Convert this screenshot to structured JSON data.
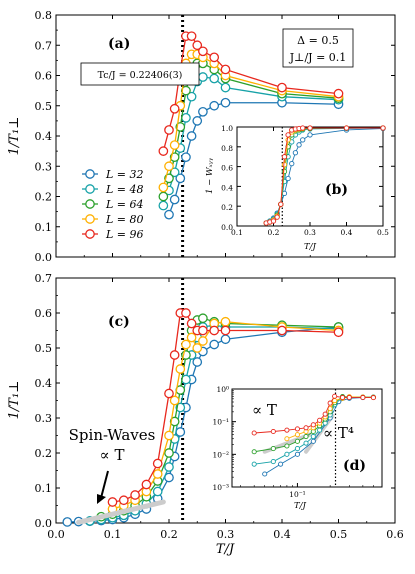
{
  "chart_data": [
    {
      "panel": "(a)",
      "type": "line",
      "ylabel": "1/T₁⊥",
      "ylim": [
        0,
        0.8
      ],
      "xlim": [
        0,
        0.6
      ],
      "yticks": [
        "0.0",
        "0.1",
        "0.2",
        "0.3",
        "0.4",
        "0.5",
        "0.6",
        "0.7",
        "0.8"
      ],
      "vline_x": 0.22406,
      "annotations": {
        "tc": "Tc/J = 0.22406(3)",
        "delta": "Δ = 0.5",
        "jperp": "J⊥/J = 0.1"
      },
      "legend": [
        "L = 32",
        "L = 48",
        "L = 64",
        "L = 80",
        "L = 96"
      ],
      "series": [
        {
          "name": "L = 32",
          "color": "#1f77b4",
          "x": [
            0.2,
            0.21,
            0.22,
            0.23,
            0.24,
            0.25,
            0.26,
            0.28,
            0.3,
            0.4,
            0.5
          ],
          "y": [
            0.14,
            0.19,
            0.26,
            0.33,
            0.4,
            0.45,
            0.48,
            0.5,
            0.51,
            0.51,
            0.505
          ]
        },
        {
          "name": "L = 48",
          "color": "#17a2a8",
          "x": [
            0.19,
            0.2,
            0.21,
            0.22,
            0.23,
            0.24,
            0.25,
            0.26,
            0.28,
            0.3,
            0.4,
            0.5
          ],
          "y": [
            0.17,
            0.22,
            0.28,
            0.36,
            0.46,
            0.53,
            0.58,
            0.595,
            0.59,
            0.56,
            0.53,
            0.52
          ]
        },
        {
          "name": "L = 64",
          "color": "#2ca02c",
          "x": [
            0.19,
            0.2,
            0.21,
            0.22,
            0.23,
            0.24,
            0.25,
            0.26,
            0.28,
            0.3,
            0.4,
            0.5
          ],
          "y": [
            0.2,
            0.26,
            0.33,
            0.43,
            0.55,
            0.62,
            0.64,
            0.64,
            0.62,
            0.59,
            0.54,
            0.525
          ]
        },
        {
          "name": "L = 80",
          "color": "#ffb000",
          "x": [
            0.19,
            0.2,
            0.21,
            0.22,
            0.23,
            0.24,
            0.25,
            0.26,
            0.28,
            0.3,
            0.4,
            0.5
          ],
          "y": [
            0.23,
            0.3,
            0.37,
            0.5,
            0.64,
            0.67,
            0.67,
            0.66,
            0.64,
            0.6,
            0.55,
            0.53
          ]
        },
        {
          "name": "L = 96",
          "color": "#e8281e",
          "x": [
            0.19,
            0.2,
            0.21,
            0.22,
            0.23,
            0.24,
            0.25,
            0.26,
            0.28,
            0.3,
            0.4,
            0.5
          ],
          "y": [
            0.35,
            0.42,
            0.49,
            0.62,
            0.73,
            0.73,
            0.7,
            0.68,
            0.66,
            0.62,
            0.56,
            0.54
          ]
        }
      ]
    },
    {
      "panel": "(b)",
      "type": "line",
      "ylabel": "1 − Wₓᵧᵧ",
      "xlabel": "T/J",
      "xlim": [
        0.1,
        0.5
      ],
      "ylim": [
        0,
        1.0
      ],
      "xticks": [
        "0.1",
        "0.2",
        "0.3",
        "0.4",
        "0.5"
      ],
      "yticks": [
        "0.0",
        "0.2",
        "0.4",
        "0.6",
        "0.8",
        "1.0"
      ],
      "vline_x": 0.22406,
      "series": [
        {
          "name": "L = 32",
          "color": "#1f77b4",
          "x": [
            0.18,
            0.19,
            0.2,
            0.21,
            0.22,
            0.23,
            0.24,
            0.25,
            0.26,
            0.27,
            0.28,
            0.3,
            0.4,
            0.5
          ],
          "y": [
            0.03,
            0.05,
            0.08,
            0.13,
            0.22,
            0.33,
            0.48,
            0.63,
            0.74,
            0.82,
            0.87,
            0.92,
            0.97,
            0.985
          ]
        },
        {
          "name": "L = 48",
          "color": "#17a2a8",
          "x": [
            0.18,
            0.19,
            0.2,
            0.21,
            0.22,
            0.23,
            0.24,
            0.25,
            0.26,
            0.27,
            0.28,
            0.3,
            0.4,
            0.5
          ],
          "y": [
            0.03,
            0.05,
            0.07,
            0.12,
            0.22,
            0.45,
            0.7,
            0.85,
            0.92,
            0.95,
            0.97,
            0.98,
            0.985,
            0.99
          ]
        },
        {
          "name": "L = 64",
          "color": "#2ca02c",
          "x": [
            0.18,
            0.19,
            0.2,
            0.21,
            0.22,
            0.23,
            0.24,
            0.25,
            0.26,
            0.27,
            0.28,
            0.3,
            0.4,
            0.5
          ],
          "y": [
            0.03,
            0.04,
            0.06,
            0.11,
            0.22,
            0.55,
            0.8,
            0.92,
            0.96,
            0.97,
            0.98,
            0.985,
            0.99,
            0.99
          ]
        },
        {
          "name": "L = 80",
          "color": "#ffb000",
          "x": [
            0.18,
            0.19,
            0.2,
            0.21,
            0.22,
            0.23,
            0.24,
            0.25,
            0.26,
            0.27,
            0.28,
            0.3,
            0.4,
            0.5
          ],
          "y": [
            0.03,
            0.04,
            0.06,
            0.1,
            0.22,
            0.62,
            0.87,
            0.95,
            0.97,
            0.98,
            0.985,
            0.99,
            0.99,
            0.99
          ]
        },
        {
          "name": "L = 96",
          "color": "#e8281e",
          "x": [
            0.18,
            0.19,
            0.2,
            0.21,
            0.22,
            0.23,
            0.24,
            0.25,
            0.26,
            0.27,
            0.28,
            0.3,
            0.4,
            0.5
          ],
          "y": [
            0.03,
            0.04,
            0.05,
            0.09,
            0.22,
            0.7,
            0.92,
            0.97,
            0.98,
            0.985,
            0.99,
            0.99,
            0.99,
            0.99
          ]
        }
      ]
    },
    {
      "panel": "(c)",
      "type": "line",
      "xlabel": "T/J",
      "ylabel": "1/T₁⊥",
      "xlim": [
        0,
        0.6
      ],
      "ylim": [
        0,
        0.7
      ],
      "xticks": [
        "0.0",
        "0.1",
        "0.2",
        "0.3",
        "0.4",
        "0.5",
        "0.6"
      ],
      "yticks": [
        "0.0",
        "0.1",
        "0.2",
        "0.3",
        "0.4",
        "0.5",
        "0.6",
        "0.7"
      ],
      "vline_x": 0.22406,
      "annotations": {
        "sw1": "Spin-Waves",
        "sw2": "∝ T"
      },
      "series": [
        {
          "name": "L = 32",
          "color": "#1f77b4",
          "x": [
            0.02,
            0.04,
            0.06,
            0.08,
            0.1,
            0.12,
            0.14,
            0.16,
            0.18,
            0.2,
            0.21,
            0.22,
            0.23,
            0.24,
            0.25,
            0.26,
            0.28,
            0.3,
            0.4,
            0.5
          ],
          "y": [
            0.003,
            0.004,
            0.005,
            0.007,
            0.01,
            0.015,
            0.025,
            0.04,
            0.07,
            0.13,
            0.19,
            0.26,
            0.33,
            0.41,
            0.46,
            0.49,
            0.51,
            0.525,
            0.545,
            0.56
          ]
        },
        {
          "name": "L = 48",
          "color": "#17a2a8",
          "x": [
            0.06,
            0.08,
            0.1,
            0.12,
            0.14,
            0.16,
            0.18,
            0.2,
            0.21,
            0.22,
            0.23,
            0.24,
            0.25,
            0.26,
            0.28,
            0.3,
            0.4,
            0.5
          ],
          "y": [
            0.006,
            0.01,
            0.015,
            0.022,
            0.035,
            0.055,
            0.09,
            0.16,
            0.24,
            0.33,
            0.41,
            0.48,
            0.53,
            0.56,
            0.565,
            0.56,
            0.56,
            0.555
          ]
        },
        {
          "name": "L = 64",
          "color": "#2ca02c",
          "x": [
            0.08,
            0.1,
            0.12,
            0.14,
            0.16,
            0.18,
            0.2,
            0.21,
            0.22,
            0.23,
            0.24,
            0.25,
            0.26,
            0.28,
            0.3,
            0.4,
            0.5
          ],
          "y": [
            0.018,
            0.025,
            0.035,
            0.05,
            0.075,
            0.12,
            0.2,
            0.29,
            0.38,
            0.48,
            0.55,
            0.58,
            0.585,
            0.575,
            0.57,
            0.565,
            0.56
          ]
        },
        {
          "name": "L = 80",
          "color": "#ffb000",
          "x": [
            0.1,
            0.12,
            0.14,
            0.16,
            0.18,
            0.2,
            0.21,
            0.22,
            0.23,
            0.24,
            0.25,
            0.26,
            0.28,
            0.3,
            0.4,
            0.5
          ],
          "y": [
            0.04,
            0.05,
            0.065,
            0.09,
            0.14,
            0.25,
            0.35,
            0.44,
            0.51,
            0.53,
            0.5,
            0.52,
            0.57,
            0.575,
            0.56,
            0.55
          ]
        },
        {
          "name": "L = 96",
          "color": "#e8281e",
          "x": [
            0.1,
            0.12,
            0.14,
            0.16,
            0.18,
            0.2,
            0.21,
            0.22,
            0.23,
            0.24,
            0.25,
            0.26,
            0.28,
            0.3,
            0.4,
            0.5
          ],
          "y": [
            0.06,
            0.065,
            0.08,
            0.11,
            0.17,
            0.37,
            0.48,
            0.6,
            0.6,
            0.57,
            0.55,
            0.55,
            0.55,
            0.55,
            0.55,
            0.545
          ]
        }
      ]
    },
    {
      "panel": "(d)",
      "type": "line",
      "xlabel": "T/J",
      "xscale": "log",
      "yscale": "log",
      "xlim": [
        0.025,
        0.6
      ],
      "ylim": [
        0.001,
        1.0
      ],
      "xticks": [
        "10⁻¹"
      ],
      "yticks": [
        "10⁻³",
        "10⁻²",
        "10⁻¹",
        "10⁰"
      ],
      "vline_x": 0.22406,
      "annotations": {
        "left": "∝ T",
        "right": "∝ T⁴"
      },
      "series": [
        {
          "name": "L = 32",
          "color": "#1f77b4",
          "x": [
            0.05,
            0.07,
            0.1,
            0.14,
            0.2,
            0.24,
            0.3,
            0.4,
            0.5
          ],
          "y": [
            0.0025,
            0.005,
            0.01,
            0.025,
            0.13,
            0.41,
            0.52,
            0.545,
            0.56
          ]
        },
        {
          "name": "L = 48",
          "color": "#17a2a8",
          "x": [
            0.04,
            0.06,
            0.08,
            0.1,
            0.12,
            0.14,
            0.16,
            0.18,
            0.2,
            0.22,
            0.26,
            0.3,
            0.4,
            0.5
          ],
          "y": [
            0.005,
            0.006,
            0.01,
            0.015,
            0.022,
            0.035,
            0.055,
            0.09,
            0.16,
            0.33,
            0.56,
            0.56,
            0.56,
            0.555
          ]
        },
        {
          "name": "L = 64",
          "color": "#2ca02c",
          "x": [
            0.04,
            0.06,
            0.08,
            0.1,
            0.12,
            0.14,
            0.16,
            0.18,
            0.2,
            0.22,
            0.26,
            0.3,
            0.4,
            0.5
          ],
          "y": [
            0.012,
            0.015,
            0.018,
            0.025,
            0.035,
            0.05,
            0.075,
            0.12,
            0.2,
            0.38,
            0.585,
            0.57,
            0.565,
            0.56
          ]
        },
        {
          "name": "L = 80",
          "color": "#ffb000",
          "x": [
            0.08,
            0.1,
            0.12,
            0.14,
            0.16,
            0.18,
            0.2,
            0.22,
            0.26,
            0.3,
            0.4,
            0.5
          ],
          "y": [
            0.03,
            0.04,
            0.05,
            0.065,
            0.09,
            0.14,
            0.25,
            0.44,
            0.52,
            0.575,
            0.56,
            0.55
          ]
        },
        {
          "name": "L = 96",
          "color": "#e8281e",
          "x": [
            0.04,
            0.06,
            0.08,
            0.1,
            0.12,
            0.14,
            0.16,
            0.18,
            0.2,
            0.22,
            0.26,
            0.3,
            0.4,
            0.5
          ],
          "y": [
            0.045,
            0.05,
            0.055,
            0.06,
            0.065,
            0.08,
            0.11,
            0.17,
            0.37,
            0.6,
            0.55,
            0.55,
            0.55,
            0.545
          ]
        }
      ]
    }
  ]
}
